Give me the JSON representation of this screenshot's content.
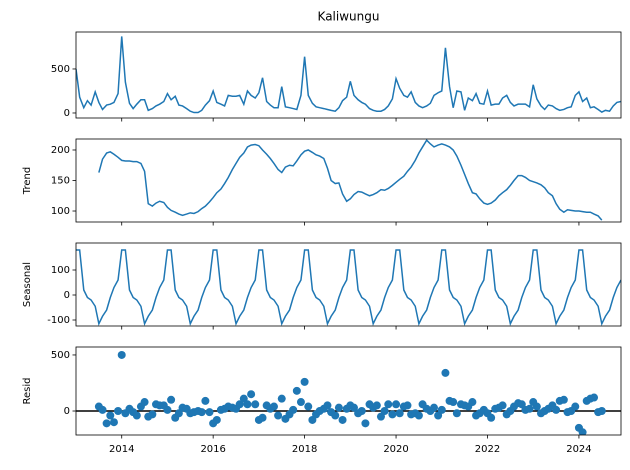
{
  "chart_data": [
    {
      "type": "line",
      "title": "Kaliwungu",
      "color": "#1f77b4",
      "x": [
        2013,
        2013.08,
        2013.17,
        2013.25,
        2013.33,
        2013.42,
        2013.5,
        2013.58,
        2013.67,
        2013.75,
        2013.83,
        2013.92,
        2014,
        2014.08,
        2014.17,
        2014.25,
        2014.33,
        2014.42,
        2014.5,
        2014.58,
        2014.67,
        2014.75,
        2014.83,
        2014.92,
        2015,
        2015.08,
        2015.17,
        2015.25,
        2015.33,
        2015.42,
        2015.5,
        2015.58,
        2015.67,
        2015.75,
        2015.83,
        2015.92,
        2016,
        2016.08,
        2016.17,
        2016.25,
        2016.33,
        2016.42,
        2016.5,
        2016.58,
        2016.67,
        2016.75,
        2016.83,
        2016.92,
        2017,
        2017.08,
        2017.17,
        2017.25,
        2017.33,
        2017.42,
        2017.5,
        2017.58,
        2017.67,
        2017.75,
        2017.83,
        2017.92,
        2018,
        2018.08,
        2018.17,
        2018.25,
        2018.33,
        2018.42,
        2018.5,
        2018.58,
        2018.67,
        2018.75,
        2018.83,
        2018.92,
        2019,
        2019.08,
        2019.17,
        2019.25,
        2019.33,
        2019.42,
        2019.5,
        2019.58,
        2019.67,
        2019.75,
        2019.83,
        2019.92,
        2020,
        2020.08,
        2020.17,
        2020.25,
        2020.33,
        2020.42,
        2020.5,
        2020.58,
        2020.67,
        2020.75,
        2020.83,
        2020.92,
        2021,
        2021.08,
        2021.17,
        2021.25,
        2021.33,
        2021.42,
        2021.5,
        2021.58,
        2021.67,
        2021.75,
        2021.83,
        2021.92,
        2022,
        2022.08,
        2022.17,
        2022.25,
        2022.33,
        2022.42,
        2022.5,
        2022.58,
        2022.67,
        2022.75,
        2022.83,
        2022.92,
        2023,
        2023.08,
        2023.17,
        2023.25,
        2023.33,
        2023.42,
        2023.5,
        2023.58,
        2023.67,
        2023.75,
        2023.83,
        2023.92,
        2024,
        2024.08,
        2024.17,
        2024.25,
        2024.33,
        2024.42,
        2024.5,
        2024.58,
        2024.67,
        2024.75,
        2024.83,
        2024.92
      ],
      "values": [
        500,
        180,
        60,
        140,
        90,
        240,
        120,
        40,
        90,
        100,
        120,
        220,
        870,
        350,
        110,
        50,
        100,
        150,
        150,
        30,
        50,
        80,
        100,
        130,
        220,
        150,
        190,
        90,
        80,
        50,
        20,
        5,
        5,
        30,
        90,
        140,
        250,
        120,
        100,
        80,
        200,
        190,
        190,
        200,
        100,
        250,
        200,
        170,
        230,
        400,
        130,
        90,
        60,
        60,
        300,
        70,
        60,
        50,
        40,
        200,
        640,
        200,
        110,
        70,
        60,
        50,
        40,
        30,
        20,
        60,
        140,
        180,
        360,
        200,
        150,
        120,
        100,
        50,
        30,
        20,
        20,
        40,
        80,
        160,
        390,
        280,
        200,
        180,
        240,
        120,
        80,
        60,
        80,
        110,
        200,
        230,
        250,
        740,
        300,
        60,
        250,
        240,
        30,
        170,
        140,
        220,
        110,
        100,
        250,
        90,
        100,
        100,
        170,
        200,
        120,
        80,
        100,
        100,
        100,
        70,
        320,
        160,
        80,
        40,
        90,
        80,
        50,
        30,
        40,
        60,
        70,
        200,
        240,
        130,
        170,
        60,
        70,
        40,
        10,
        30,
        20,
        80,
        120,
        130
      ],
      "xlim": [
        2013,
        2024.92
      ],
      "xticks": [
        2014,
        2016,
        2018,
        2020,
        2022,
        2024
      ],
      "ylim": [
        -57,
        920
      ],
      "yticks": [
        0,
        500
      ]
    },
    {
      "type": "line",
      "ylabel": "Trend",
      "color": "#1f77b4",
      "x": [
        2013,
        2013.08,
        2013.17,
        2013.25,
        2013.33,
        2013.42,
        2013.5,
        2013.58,
        2013.67,
        2013.75,
        2013.83,
        2013.92,
        2014,
        2014.08,
        2014.17,
        2014.25,
        2014.33,
        2014.42,
        2014.5,
        2014.58,
        2014.67,
        2014.75,
        2014.83,
        2014.92,
        2015,
        2015.08,
        2015.17,
        2015.25,
        2015.33,
        2015.42,
        2015.5,
        2015.58,
        2015.67,
        2015.75,
        2015.83,
        2015.92,
        2016,
        2016.08,
        2016.17,
        2016.25,
        2016.33,
        2016.42,
        2016.5,
        2016.58,
        2016.67,
        2016.75,
        2016.83,
        2016.92,
        2017,
        2017.08,
        2017.17,
        2017.25,
        2017.33,
        2017.42,
        2017.5,
        2017.58,
        2017.67,
        2017.75,
        2017.83,
        2017.92,
        2018,
        2018.08,
        2018.17,
        2018.25,
        2018.33,
        2018.42,
        2018.5,
        2018.58,
        2018.67,
        2018.75,
        2018.83,
        2018.92,
        2019,
        2019.08,
        2019.17,
        2019.25,
        2019.33,
        2019.42,
        2019.5,
        2019.58,
        2019.67,
        2019.75,
        2019.83,
        2019.92,
        2020,
        2020.08,
        2020.17,
        2020.25,
        2020.33,
        2020.42,
        2020.5,
        2020.58,
        2020.67,
        2020.75,
        2020.83,
        2020.92,
        2021,
        2021.08,
        2021.17,
        2021.25,
        2021.33,
        2021.42,
        2021.5,
        2021.58,
        2021.67,
        2021.75,
        2021.83,
        2021.92,
        2022,
        2022.08,
        2022.17,
        2022.25,
        2022.33,
        2022.42,
        2022.5,
        2022.58,
        2022.67,
        2022.75,
        2022.83,
        2022.92,
        2023,
        2023.08,
        2023.17,
        2023.25,
        2023.33,
        2023.42,
        2023.5,
        2023.58,
        2023.67,
        2023.75,
        2023.83,
        2023.92,
        2024,
        2024.08,
        2024.17,
        2024.25,
        2024.33,
        2024.42,
        2024.5,
        2024.58,
        2024.67,
        2024.75,
        2024.83,
        2024.92
      ],
      "values": [
        null,
        null,
        null,
        null,
        null,
        null,
        163,
        185,
        195,
        197,
        193,
        188,
        183,
        182,
        182,
        181,
        181,
        178,
        165,
        112,
        108,
        113,
        116,
        114,
        106,
        101,
        98,
        95,
        93,
        95,
        97,
        96,
        99,
        104,
        108,
        115,
        122,
        130,
        136,
        145,
        155,
        168,
        178,
        188,
        195,
        205,
        208,
        209,
        207,
        200,
        193,
        186,
        178,
        168,
        163,
        172,
        175,
        174,
        182,
        192,
        198,
        200,
        196,
        192,
        190,
        186,
        170,
        150,
        145,
        146,
        128,
        116,
        120,
        127,
        132,
        131,
        128,
        125,
        127,
        130,
        135,
        134,
        137,
        142,
        147,
        152,
        157,
        165,
        172,
        183,
        195,
        205,
        216,
        210,
        205,
        208,
        210,
        208,
        205,
        200,
        190,
        175,
        160,
        145,
        130,
        128,
        120,
        113,
        111,
        113,
        118,
        125,
        130,
        135,
        142,
        150,
        158,
        158,
        155,
        150,
        148,
        146,
        143,
        138,
        130,
        125,
        112,
        103,
        98,
        102,
        101,
        100,
        100,
        99,
        98,
        98,
        95,
        92,
        85,
        null,
        null,
        null,
        null,
        null
      ],
      "xlim": [
        2013,
        2024.92
      ],
      "xticks": [
        2014,
        2016,
        2018,
        2020,
        2022,
        2024
      ],
      "ylim": [
        82,
        218
      ],
      "yticks": [
        100,
        150,
        200
      ]
    },
    {
      "type": "line",
      "ylabel": "Seasonal",
      "color": "#1f77b4",
      "x": [
        2013,
        2013.08,
        2013.17,
        2013.25,
        2013.33,
        2013.42,
        2013.5,
        2013.58,
        2013.67,
        2013.75,
        2013.83,
        2013.92,
        2014,
        2014.08,
        2014.17,
        2014.25,
        2014.33,
        2014.42,
        2014.5,
        2014.58,
        2014.67,
        2014.75,
        2014.83,
        2014.92,
        2015,
        2015.08,
        2015.17,
        2015.25,
        2015.33,
        2015.42,
        2015.5,
        2015.58,
        2015.67,
        2015.75,
        2015.83,
        2015.92,
        2016,
        2016.08,
        2016.17,
        2016.25,
        2016.33,
        2016.42,
        2016.5,
        2016.58,
        2016.67,
        2016.75,
        2016.83,
        2016.92,
        2017,
        2017.08,
        2017.17,
        2017.25,
        2017.33,
        2017.42,
        2017.5,
        2017.58,
        2017.67,
        2017.75,
        2017.83,
        2017.92,
        2018,
        2018.08,
        2018.17,
        2018.25,
        2018.33,
        2018.42,
        2018.5,
        2018.58,
        2018.67,
        2018.75,
        2018.83,
        2018.92,
        2019,
        2019.08,
        2019.17,
        2019.25,
        2019.33,
        2019.42,
        2019.5,
        2019.58,
        2019.67,
        2019.75,
        2019.83,
        2019.92,
        2020,
        2020.08,
        2020.17,
        2020.25,
        2020.33,
        2020.42,
        2020.5,
        2020.58,
        2020.67,
        2020.75,
        2020.83,
        2020.92,
        2021,
        2021.08,
        2021.17,
        2021.25,
        2021.33,
        2021.42,
        2021.5,
        2021.58,
        2021.67,
        2021.75,
        2021.83,
        2021.92,
        2022,
        2022.08,
        2022.17,
        2022.25,
        2022.33,
        2022.42,
        2022.5,
        2022.58,
        2022.67,
        2022.75,
        2022.83,
        2022.92,
        2023,
        2023.08,
        2023.17,
        2023.25,
        2023.33,
        2023.42,
        2023.5,
        2023.58,
        2023.67,
        2023.75,
        2023.83,
        2023.92,
        2024,
        2024.08,
        2024.17,
        2024.25,
        2024.33,
        2024.42,
        2024.5,
        2024.58,
        2024.67,
        2024.75,
        2024.83,
        2024.92
      ],
      "values": [
        180,
        180,
        20,
        -10,
        -20,
        -45,
        -115,
        -85,
        -60,
        -10,
        30,
        60,
        180,
        180,
        20,
        -10,
        -20,
        -45,
        -115,
        -85,
        -60,
        -10,
        30,
        60,
        180,
        180,
        20,
        -10,
        -20,
        -45,
        -115,
        -85,
        -60,
        -10,
        30,
        60,
        180,
        180,
        20,
        -10,
        -20,
        -45,
        -115,
        -85,
        -60,
        -10,
        30,
        60,
        180,
        180,
        20,
        -10,
        -20,
        -45,
        -115,
        -85,
        -60,
        -10,
        30,
        60,
        180,
        180,
        20,
        -10,
        -20,
        -45,
        -115,
        -85,
        -60,
        -10,
        30,
        60,
        180,
        180,
        20,
        -10,
        -20,
        -45,
        -115,
        -85,
        -60,
        -10,
        30,
        60,
        180,
        180,
        20,
        -10,
        -20,
        -45,
        -115,
        -85,
        -60,
        -10,
        30,
        60,
        180,
        180,
        20,
        -10,
        -20,
        -45,
        -115,
        -85,
        -60,
        -10,
        30,
        60,
        180,
        180,
        20,
        -10,
        -20,
        -45,
        -115,
        -85,
        -60,
        -10,
        30,
        60,
        180,
        180,
        20,
        -10,
        -20,
        -45,
        -115,
        -85,
        -60,
        -10,
        30,
        60,
        180,
        180,
        20,
        -10,
        -20,
        -45,
        -115,
        -85,
        -60,
        -10,
        30,
        60
      ],
      "xlim": [
        2013,
        2024.92
      ],
      "xticks": [
        2014,
        2016,
        2018,
        2020,
        2022,
        2024
      ],
      "ylim": [
        -124,
        208
      ],
      "yticks": [
        -100,
        0,
        100
      ]
    },
    {
      "type": "scatter",
      "ylabel": "Resid",
      "color": "#1f77b4",
      "hline": 0,
      "x": [
        2013,
        2013.08,
        2013.17,
        2013.25,
        2013.33,
        2013.42,
        2013.5,
        2013.58,
        2013.67,
        2013.75,
        2013.83,
        2013.92,
        2014,
        2014.08,
        2014.17,
        2014.25,
        2014.33,
        2014.42,
        2014.5,
        2014.58,
        2014.67,
        2014.75,
        2014.83,
        2014.92,
        2015,
        2015.08,
        2015.17,
        2015.25,
        2015.33,
        2015.42,
        2015.5,
        2015.58,
        2015.67,
        2015.75,
        2015.83,
        2015.92,
        2016,
        2016.08,
        2016.17,
        2016.25,
        2016.33,
        2016.42,
        2016.5,
        2016.58,
        2016.67,
        2016.75,
        2016.83,
        2016.92,
        2017,
        2017.08,
        2017.17,
        2017.25,
        2017.33,
        2017.42,
        2017.5,
        2017.58,
        2017.67,
        2017.75,
        2017.83,
        2017.92,
        2018,
        2018.08,
        2018.17,
        2018.25,
        2018.33,
        2018.42,
        2018.5,
        2018.58,
        2018.67,
        2018.75,
        2018.83,
        2018.92,
        2019,
        2019.08,
        2019.17,
        2019.25,
        2019.33,
        2019.42,
        2019.5,
        2019.58,
        2019.67,
        2019.75,
        2019.83,
        2019.92,
        2020,
        2020.08,
        2020.17,
        2020.25,
        2020.33,
        2020.42,
        2020.5,
        2020.58,
        2020.67,
        2020.75,
        2020.83,
        2020.92,
        2021,
        2021.08,
        2021.17,
        2021.25,
        2021.33,
        2021.42,
        2021.5,
        2021.58,
        2021.67,
        2021.75,
        2021.83,
        2021.92,
        2022,
        2022.08,
        2022.17,
        2022.25,
        2022.33,
        2022.42,
        2022.5,
        2022.58,
        2022.67,
        2022.75,
        2022.83,
        2022.92,
        2023,
        2023.08,
        2023.17,
        2023.25,
        2023.33,
        2023.42,
        2023.5,
        2023.58,
        2023.67,
        2023.75,
        2023.83,
        2023.92,
        2024,
        2024.08,
        2024.17,
        2024.25,
        2024.33,
        2024.42,
        2024.5,
        2024.58,
        2024.67,
        2024.75,
        2024.83,
        2024.92
      ],
      "values": [
        null,
        null,
        null,
        null,
        null,
        null,
        40,
        10,
        -110,
        -40,
        -100,
        0,
        500,
        -20,
        20,
        -10,
        -40,
        40,
        80,
        -50,
        -30,
        60,
        50,
        50,
        10,
        100,
        -60,
        -20,
        30,
        20,
        -20,
        -10,
        0,
        -10,
        90,
        -10,
        -110,
        -80,
        10,
        20,
        40,
        30,
        20,
        60,
        110,
        60,
        150,
        60,
        -80,
        -60,
        50,
        20,
        40,
        -40,
        110,
        -70,
        -30,
        10,
        180,
        80,
        260,
        40,
        -80,
        -30,
        0,
        20,
        50,
        -10,
        -40,
        30,
        -80,
        20,
        50,
        30,
        -20,
        0,
        -110,
        60,
        30,
        50,
        -50,
        0,
        60,
        -30,
        60,
        -20,
        40,
        50,
        -30,
        -20,
        -40,
        60,
        20,
        0,
        30,
        -40,
        10,
        340,
        90,
        80,
        -20,
        60,
        50,
        40,
        80,
        -40,
        -20,
        10,
        -20,
        -60,
        20,
        30,
        50,
        -30,
        0,
        40,
        70,
        60,
        10,
        20,
        80,
        40,
        -20,
        0,
        20,
        50,
        10,
        90,
        100,
        -10,
        0,
        40,
        -150,
        -190,
        90,
        110,
        120,
        -10,
        0,
        null,
        null,
        null,
        null,
        null
      ],
      "xlim": [
        2013,
        2024.92
      ],
      "xticks": [
        2014,
        2016,
        2018,
        2020,
        2022,
        2024
      ],
      "ylim": [
        -214,
        571
      ],
      "yticks": [
        0,
        500
      ]
    }
  ]
}
